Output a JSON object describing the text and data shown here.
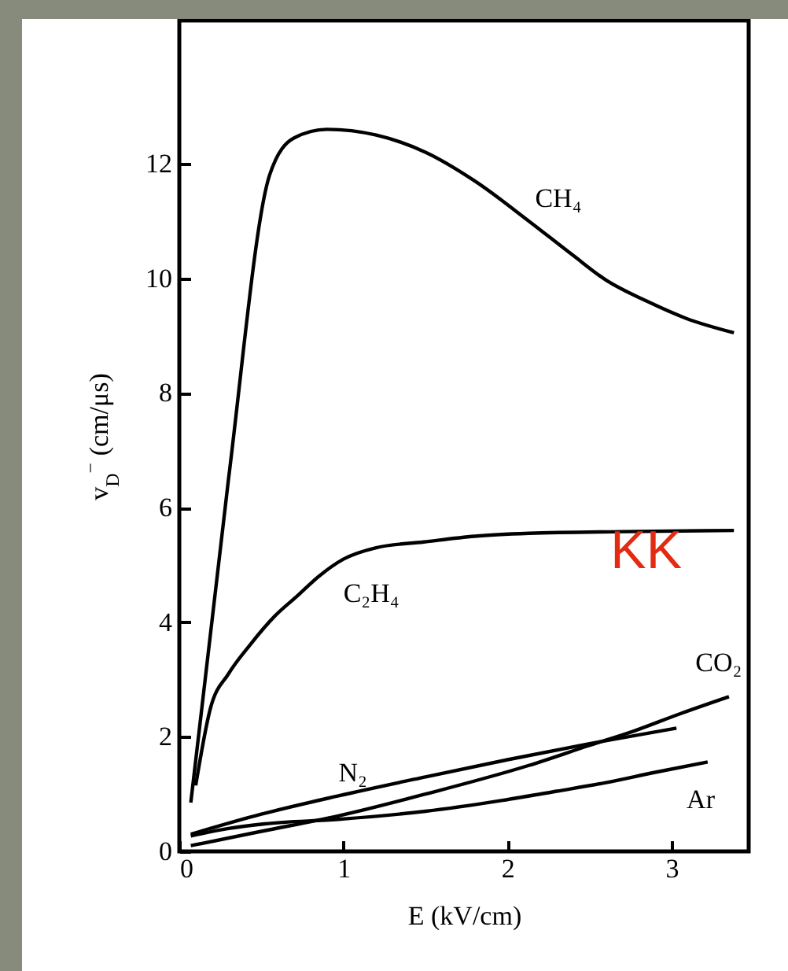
{
  "chart_data": {
    "type": "line",
    "xlabel": "E (kV/cm)",
    "ylabel": "v$_{D}$$^{−}$ (cm/μs)",
    "xlim": [
      0,
      3.47
    ],
    "ylim": [
      0,
      14.5
    ],
    "xticks": [
      0,
      1,
      2,
      3
    ],
    "yticks": [
      0,
      2,
      4,
      6,
      8,
      10,
      12
    ],
    "grid": false,
    "annotations": [
      "KK"
    ],
    "series": [
      {
        "name": "CH₄",
        "color": "#000000",
        "x": [
          0.07,
          0.3,
          0.55,
          0.7,
          0.9,
          1.2,
          1.5,
          1.8,
          2.13,
          2.4,
          2.6,
          2.85,
          3.09,
          3.38
        ],
        "values": [
          0.85,
          6.5,
          11.8,
          12.45,
          12.6,
          12.5,
          12.2,
          11.7,
          11.0,
          10.4,
          9.97,
          9.6,
          9.3,
          9.05
        ]
      },
      {
        "name": "C₂H₄",
        "color": "#000000",
        "x": [
          0.1,
          0.19,
          0.3,
          0.43,
          0.58,
          0.72,
          0.85,
          1.0,
          1.2,
          1.49,
          1.8,
          2.13,
          2.7,
          3.38
        ],
        "values": [
          1.15,
          2.5,
          3.1,
          3.6,
          4.1,
          4.46,
          4.8,
          5.1,
          5.3,
          5.4,
          5.5,
          5.55,
          5.58,
          5.6
        ]
      },
      {
        "name": "N₂",
        "color": "#000000",
        "x": [
          0.07,
          0.5,
          0.97,
          1.5,
          2.0,
          2.5,
          3.03
        ],
        "values": [
          0.3,
          0.65,
          0.97,
          1.3,
          1.6,
          1.88,
          2.15
        ]
      },
      {
        "name": "CO₂",
        "color": "#000000",
        "x": [
          0.07,
          0.5,
          0.97,
          1.5,
          2.13,
          2.5,
          2.77,
          3.05,
          3.35
        ],
        "values": [
          0.1,
          0.35,
          0.62,
          1.0,
          1.5,
          1.85,
          2.1,
          2.4,
          2.7
        ]
      },
      {
        "name": "Ar",
        "color": "#000000",
        "x": [
          0.07,
          0.3,
          0.52,
          0.97,
          1.5,
          1.97,
          2.3,
          2.6,
          2.9,
          3.22
        ],
        "values": [
          0.27,
          0.4,
          0.48,
          0.56,
          0.7,
          0.89,
          1.05,
          1.2,
          1.38,
          1.56
        ]
      }
    ]
  }
}
